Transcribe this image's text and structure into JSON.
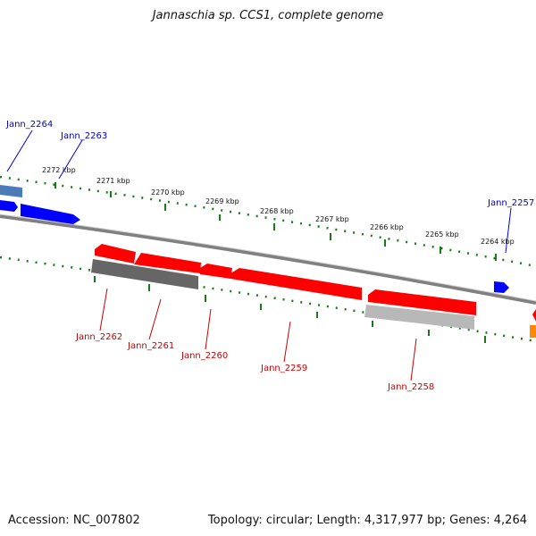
{
  "title": "Jannaschia sp. CCS1, complete genome",
  "accession": "Accession: NC_007802",
  "topology_info": "Topology: circular; Length: 4,317,977 bp; Genes: 4,264",
  "colors": {
    "forward_label": "#0000cc",
    "reverse_label": "#cc0000",
    "tick": "#1a7a1a",
    "backbone": "#808080",
    "gene_red": "#ff0000",
    "gene_blue": "#0000ff",
    "gene_darkgray": "#666666",
    "gene_lightgray": "#b8b8b8",
    "gene_steelblue": "#4a7ab8",
    "gene_orange": "#ff8800"
  },
  "ticks": [
    "2272 kbp",
    "2271 kbp",
    "2270 kbp",
    "2269 kbp",
    "2268 kbp",
    "2267 kbp",
    "2266 kbp",
    "2265 kbp",
    "2264 kbp"
  ],
  "forward_genes": [
    "Jann_2264",
    "Jann_2263",
    "Jann_2257"
  ],
  "reverse_genes": [
    "Jann_2262",
    "Jann_2261",
    "Jann_2260",
    "Jann_2259",
    "Jann_2258"
  ]
}
